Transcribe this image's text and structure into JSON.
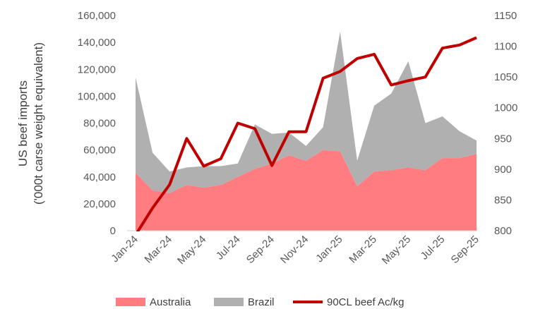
{
  "chart_data": {
    "type": "area",
    "categories": [
      "Jan-24",
      "Feb-24",
      "Mar-24",
      "Apr-24",
      "May-24",
      "Jun-24",
      "Jul-24",
      "Aug-24",
      "Sep-24",
      "Oct-24",
      "Nov-24",
      "Dec-24",
      "Jan-25",
      "Feb-25",
      "Mar-25",
      "Apr-25",
      "May-25",
      "Jun-25",
      "Jul-25",
      "Aug-25",
      "Sep-25"
    ],
    "tick_labels": [
      "Jan-24",
      "Mar-24",
      "May-24",
      "Jul-24",
      "Sep-24",
      "Nov-24",
      "Jan-25",
      "Mar-25",
      "May-25",
      "Jul-25",
      "Sep-25"
    ],
    "series": [
      {
        "name": "Australia",
        "type": "area",
        "axis": "left",
        "color": "#ff7c80",
        "values": [
          43000,
          30000,
          28000,
          34000,
          32000,
          34000,
          40000,
          46000,
          50000,
          56000,
          52000,
          60000,
          59000,
          33000,
          44000,
          45000,
          47000,
          45000,
          54000,
          54000,
          57000
        ]
      },
      {
        "name": "Brazil",
        "type": "area",
        "axis": "left",
        "color": "#b0b0b0",
        "values": [
          71000,
          28000,
          16000,
          13000,
          16000,
          14000,
          10000,
          33000,
          22000,
          17000,
          11000,
          17000,
          89000,
          19000,
          49000,
          57000,
          79000,
          35000,
          31000,
          20000,
          10000
        ]
      },
      {
        "name": "90CL beef Ac/kg",
        "type": "line",
        "axis": "right",
        "color": "#c00000",
        "values": [
          793,
          837,
          875,
          950,
          905,
          917,
          975,
          966,
          906,
          961,
          961,
          1048,
          1059,
          1080,
          1087,
          1037,
          1044,
          1050,
          1097,
          1102,
          1114
        ]
      }
    ],
    "y_left": {
      "label_line1": "US beef imports",
      "label_line2": "('000t carse weight equivalent)",
      "min": 0,
      "max": 160000,
      "ticks": [
        "0",
        "20,000",
        "40,000",
        "60,000",
        "80,000",
        "100,000",
        "120,000",
        "140,000",
        "160,000"
      ]
    },
    "y_right": {
      "min": 800,
      "max": 1150,
      "ticks": [
        "800",
        "850",
        "900",
        "950",
        "1000",
        "1050",
        "1100",
        "1150"
      ]
    },
    "grid": false,
    "legend_position": "bottom"
  },
  "legend": {
    "items": [
      {
        "label": "Australia",
        "color": "#ff7c80"
      },
      {
        "label": "Brazil",
        "color": "#b0b0b0"
      },
      {
        "label": "90CL beef Ac/kg",
        "color": "#c00000"
      }
    ]
  }
}
